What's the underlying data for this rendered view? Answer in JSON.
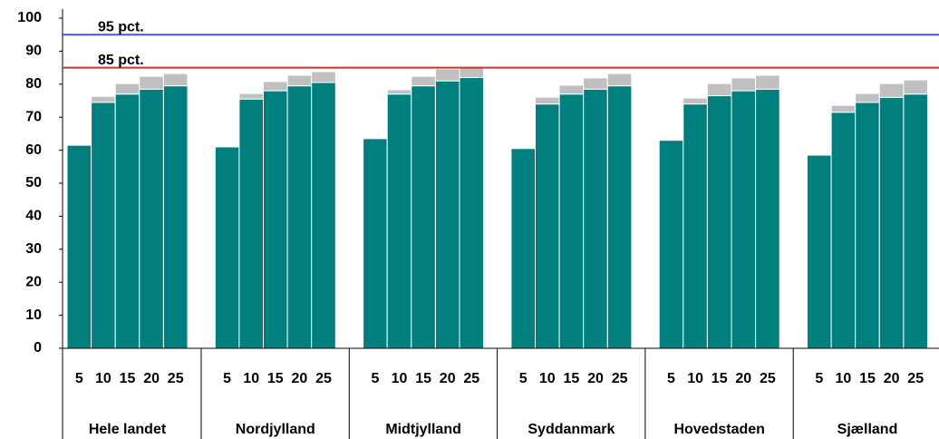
{
  "chart_data": {
    "type": "stacked_grouped_bar",
    "groups": [
      "Hele landet",
      "Nordjylland",
      "Midtjylland",
      "Syddanmark",
      "Hovedstaden",
      "Sjælland"
    ],
    "subcategories": [
      "5",
      "10",
      "15",
      "20",
      "25"
    ],
    "series": [
      {
        "color": "#007f7f",
        "values": [
          [
            61.5,
            74.5,
            77,
            78.5,
            79.5
          ],
          [
            61,
            75.5,
            78,
            79.5,
            80.5
          ],
          [
            63.5,
            77,
            79.5,
            81,
            82
          ],
          [
            60.5,
            74,
            77,
            78.5,
            79.5
          ],
          [
            63,
            74,
            76.5,
            78,
            78.5
          ],
          [
            58.5,
            71.5,
            74.5,
            76,
            77
          ]
        ]
      },
      {
        "color": "#c0c0c0",
        "values": [
          [
            0,
            1.8,
            3.2,
            3.9,
            3.7
          ],
          [
            0,
            1.7,
            2.8,
            3.2,
            3.3
          ],
          [
            0,
            1.3,
            2.9,
            3.6,
            3.4
          ],
          [
            0,
            2.1,
            2.7,
            3.4,
            3.7
          ],
          [
            0,
            1.8,
            3.7,
            3.9,
            4.2
          ],
          [
            0,
            2.1,
            2.7,
            4.2,
            4.3
          ]
        ]
      }
    ],
    "reference_lines": [
      {
        "value": 95,
        "label": "95 pct.",
        "color": "#3a5fcd"
      },
      {
        "value": 85,
        "label": "85 pct.",
        "color": "#c0392b"
      }
    ],
    "ylim": [
      0,
      100
    ],
    "yticks": [
      0,
      10,
      20,
      30,
      40,
      50,
      60,
      70,
      80,
      90,
      100
    ]
  }
}
